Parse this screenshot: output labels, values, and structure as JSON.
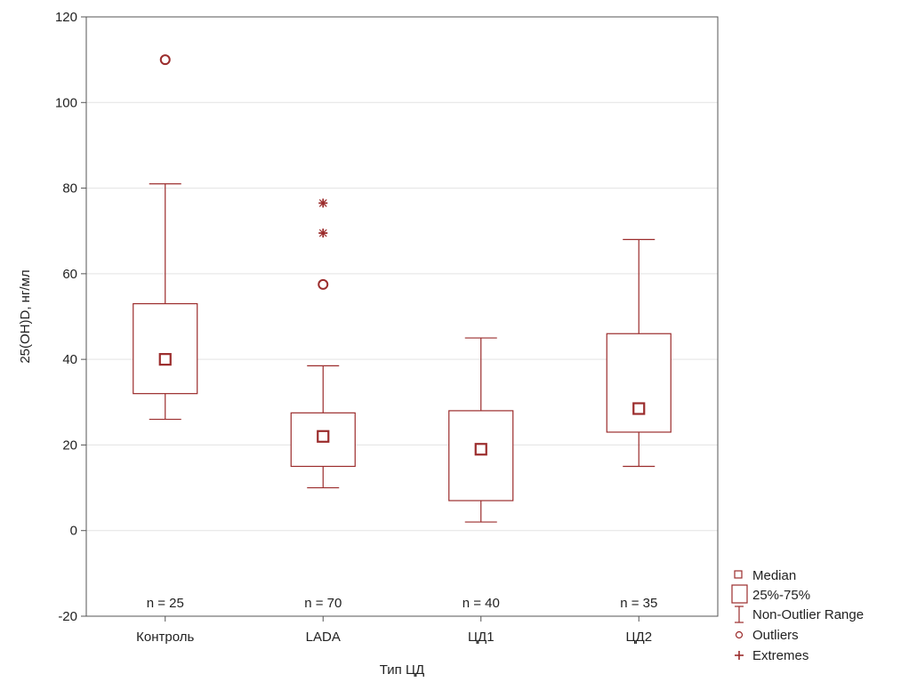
{
  "chart_data": {
    "type": "boxplot",
    "xlabel": "Тип ЦД",
    "ylabel": "25(OH)D, нг/мл",
    "ylim": [
      -20,
      120
    ],
    "yticks": [
      -20,
      0,
      20,
      40,
      60,
      80,
      100,
      120
    ],
    "grid": "horizontal",
    "legend_position": "bottom-right",
    "box_color": "#9b2c2c",
    "categories": [
      "Контроль",
      "LADA",
      "ЦД1",
      "ЦД2"
    ],
    "series": [
      {
        "category": "Контроль",
        "n_label": "n = 25",
        "median": 40,
        "q1": 32,
        "q3": 53,
        "whisker_low": 26,
        "whisker_high": 81,
        "outliers": [
          110
        ],
        "extremes": []
      },
      {
        "category": "LADA",
        "n_label": "n = 70",
        "median": 22,
        "q1": 15,
        "q3": 27.5,
        "whisker_low": 10,
        "whisker_high": 38.5,
        "outliers": [
          57.5
        ],
        "extremes": [
          69.5,
          76.5
        ]
      },
      {
        "category": "ЦД1",
        "n_label": "n = 40",
        "median": 19,
        "q1": 7,
        "q3": 28,
        "whisker_low": 2,
        "whisker_high": 45,
        "outliers": [],
        "extremes": []
      },
      {
        "category": "ЦД2",
        "n_label": "n = 35",
        "median": 28.5,
        "q1": 23,
        "q3": 46,
        "whisker_low": 15,
        "whisker_high": 68,
        "outliers": [],
        "extremes": []
      }
    ],
    "legend": {
      "median": "Median",
      "box": "25%-75%",
      "range": "Non-Outlier Range",
      "outliers": "Outliers",
      "extremes": "Extremes"
    }
  }
}
